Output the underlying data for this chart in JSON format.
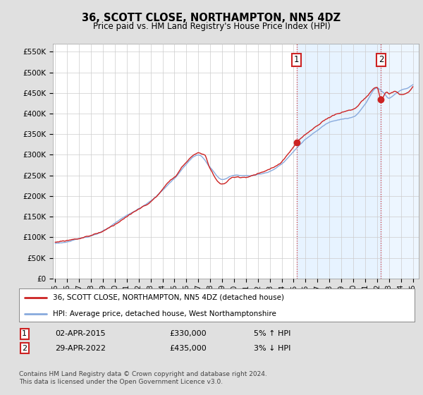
{
  "title": "36, SCOTT CLOSE, NORTHAMPTON, NN5 4DZ",
  "subtitle": "Price paid vs. HM Land Registry's House Price Index (HPI)",
  "ylabel_ticks": [
    "£0",
    "£50K",
    "£100K",
    "£150K",
    "£200K",
    "£250K",
    "£300K",
    "£350K",
    "£400K",
    "£450K",
    "£500K",
    "£550K"
  ],
  "ytick_values": [
    0,
    50000,
    100000,
    150000,
    200000,
    250000,
    300000,
    350000,
    400000,
    450000,
    500000,
    550000
  ],
  "ylim": [
    0,
    570000
  ],
  "legend_line1": "36, SCOTT CLOSE, NORTHAMPTON, NN5 4DZ (detached house)",
  "legend_line2": "HPI: Average price, detached house, West Northamptonshire",
  "red_color": "#cc2222",
  "blue_color": "#88aadd",
  "shade_color": "#ddeeff",
  "sale1_year": 2015.25,
  "sale1_price_val": 330000,
  "sale2_year": 2022.33,
  "sale2_price_val": 435000,
  "sale1_date": "02-APR-2015",
  "sale1_price": "£330,000",
  "sale1_hpi": "5% ↑ HPI",
  "sale2_date": "29-APR-2022",
  "sale2_price": "£435,000",
  "sale2_hpi": "3% ↓ HPI",
  "footnote": "Contains HM Land Registry data © Crown copyright and database right 2024.\nThis data is licensed under the Open Government Licence v3.0.",
  "background_color": "#e0e0e0",
  "plot_bg_color": "#ffffff",
  "grid_color": "#cccccc",
  "xstart": 1995,
  "xend": 2025
}
